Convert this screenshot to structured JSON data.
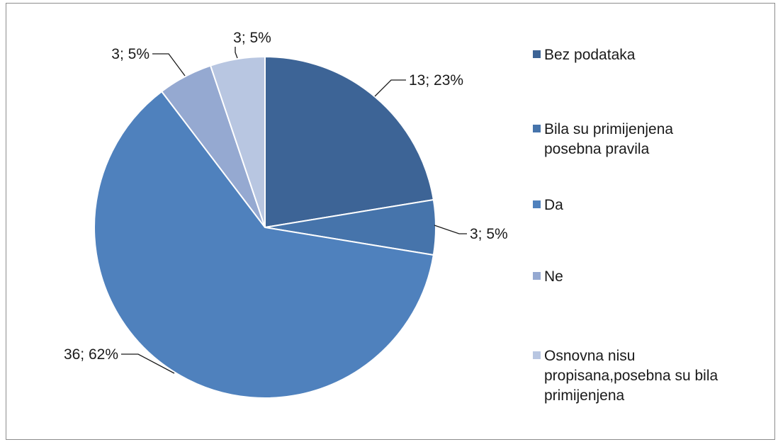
{
  "chart_data": {
    "type": "pie",
    "categories": [
      "Bez podataka",
      "Bila su primijenjena posebna pravila",
      "Da",
      "Ne",
      "Osnovna nisu propisana,posebna su bila primijenjena"
    ],
    "values": [
      13,
      3,
      36,
      3,
      3
    ],
    "percents": [
      23,
      5,
      62,
      5,
      5
    ],
    "data_labels": [
      "13; 23%",
      "3; 5%",
      "36; 62%",
      "3; 5%",
      "3; 5%"
    ],
    "legend_lines": [
      [
        "Bez podataka"
      ],
      [
        "Bila su primijenjena",
        "posebna pravila"
      ],
      [
        "Da"
      ],
      [
        "Ne"
      ],
      [
        "Osnovna nisu",
        "propisana,posebna su bila",
        "primijenjena"
      ]
    ],
    "colors": [
      "#3d6496",
      "#4674ab",
      "#4f81bd",
      "#95a9d1",
      "#b8c6e1"
    ],
    "legend_position": "right",
    "start_angle_deg": 0,
    "direction": "clockwise"
  }
}
